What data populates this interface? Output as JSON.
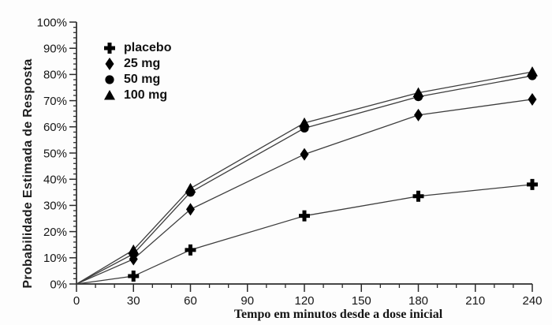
{
  "chart_data": {
    "type": "line",
    "title": "",
    "xlabel": "Tempo em minutos desde a dose inicial",
    "ylabel": "Probabilidade Estimada de Resposta",
    "xlim": [
      0,
      240
    ],
    "ylim": [
      0,
      100
    ],
    "x_tick_values": [
      0,
      30,
      60,
      90,
      120,
      150,
      180,
      210,
      240
    ],
    "x_tick_labels": [
      "0",
      "30",
      "60",
      "90",
      "120",
      "150",
      "180",
      "210",
      "240"
    ],
    "x_minor_tick_step": 10,
    "y_tick_values": [
      0,
      10,
      20,
      30,
      40,
      50,
      60,
      70,
      80,
      90,
      100
    ],
    "y_tick_labels": [
      "0%",
      "10%",
      "20%",
      "30%",
      "40%",
      "50%",
      "60%",
      "70%",
      "80%",
      "90%",
      "100%"
    ],
    "y_minor_tick_step": 2,
    "grid": false,
    "legend_position": "upper-left-inside",
    "x": [
      0,
      30,
      60,
      120,
      180,
      240
    ],
    "series": [
      {
        "name": "placebo",
        "marker": "plus",
        "values": [
          0,
          3,
          13,
          26,
          33.5,
          38
        ]
      },
      {
        "name": "25 mg",
        "marker": "diamond",
        "values": [
          0,
          9.5,
          28.5,
          49.5,
          64.5,
          70.5
        ]
      },
      {
        "name": "50 mg",
        "marker": "circle",
        "values": [
          0,
          11.5,
          35,
          59.5,
          71.5,
          79.5
        ]
      },
      {
        "name": "100 mg",
        "marker": "triangle",
        "values": [
          0,
          13,
          36.5,
          61.5,
          73,
          81
        ]
      }
    ],
    "colors": {
      "line": "#3d3d3d",
      "marker": "#000000",
      "axis": "#2b2b2b",
      "text": "#161616",
      "background": "#fdfdfd"
    }
  }
}
